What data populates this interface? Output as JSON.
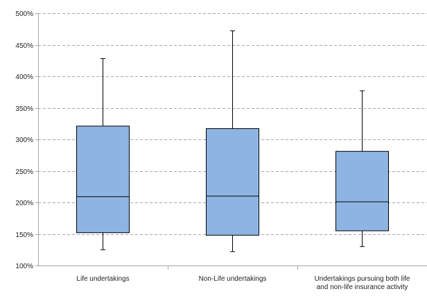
{
  "chart_data": {
    "type": "boxplot",
    "title": "",
    "xlabel": "",
    "ylabel": "",
    "ylim": [
      1.0,
      5.0
    ],
    "y_ticks": [
      "100%",
      "150%",
      "200%",
      "250%",
      "300%",
      "350%",
      "400%",
      "450%",
      "500%"
    ],
    "y_tick_values": [
      1.0,
      1.5,
      2.0,
      2.5,
      3.0,
      3.5,
      4.0,
      4.5,
      5.0
    ],
    "grid": "horizontal-dashed",
    "legend": "none",
    "categories": [
      {
        "label_lines": [
          "Life undertakings"
        ]
      },
      {
        "label_lines": [
          "Non-Life undertakings"
        ]
      },
      {
        "label_lines": [
          "Undertakings pursuing both life",
          "and non-life insurance activity"
        ]
      }
    ],
    "boxes": [
      {
        "min": 1.25,
        "q1": 1.52,
        "median": 2.09,
        "q3": 3.21,
        "max": 4.28
      },
      {
        "min": 1.22,
        "q1": 1.48,
        "median": 2.1,
        "q3": 3.17,
        "max": 4.72
      },
      {
        "min": 1.3,
        "q1": 1.55,
        "median": 2.01,
        "q3": 2.81,
        "max": 3.77
      }
    ],
    "colors": {
      "box_fill": "#8eb4e3",
      "box_stroke": "#000000",
      "grid": "#a6a6a6",
      "axis": "#a6a6a6"
    }
  }
}
